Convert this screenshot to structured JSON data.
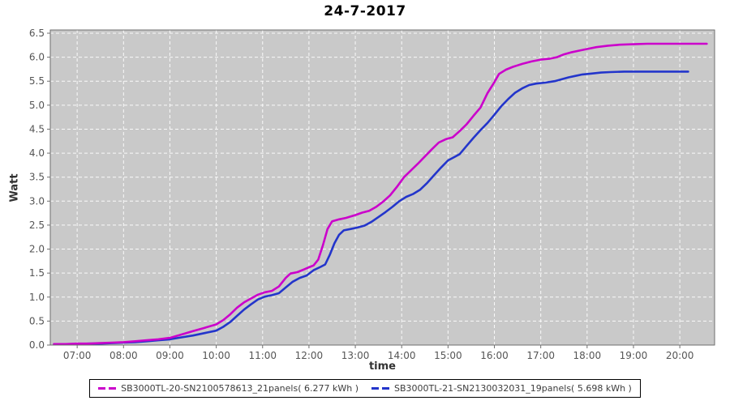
{
  "chart_data": {
    "type": "line",
    "title": "24-7-2017",
    "xlabel": "time",
    "ylabel": "Watt",
    "x_unit": "hour_of_day",
    "xlim": [
      6.42,
      20.75
    ],
    "ylim": [
      0,
      6.5
    ],
    "grid": true,
    "legend_position": "bottom-center",
    "plot_background": "#c9c9c9",
    "grid_color": "#ffffff",
    "axis_color": "#6e6e6e",
    "tick_label_color": "#555555",
    "x_tick_values": [
      7,
      8,
      9,
      10,
      11,
      12,
      13,
      14,
      15,
      16,
      17,
      18,
      19,
      20
    ],
    "x_tick_labels": [
      "07:00",
      "08:00",
      "09:00",
      "10:00",
      "11:00",
      "12:00",
      "13:00",
      "14:00",
      "15:00",
      "16:00",
      "17:00",
      "18:00",
      "19:00",
      "20:00"
    ],
    "y_tick_values": [
      0.0,
      0.5,
      1.0,
      1.5,
      2.0,
      2.5,
      3.0,
      3.5,
      4.0,
      4.5,
      5.0,
      5.5,
      6.0,
      6.5
    ],
    "y_tick_labels": [
      "0.0",
      "0.5",
      "1.0",
      "1.5",
      "2.0",
      "2.5",
      "3.0",
      "3.5",
      "4.0",
      "4.5",
      "5.0",
      "5.5",
      "6.0",
      "6.5"
    ],
    "series": [
      {
        "name": "SB3000TL-20-SN2100578613_21panels( 6.277 kWh )",
        "color": "#cb00cb",
        "final_kwh": 6.277,
        "points": [
          [
            6.5,
            0.02
          ],
          [
            6.75,
            0.02
          ],
          [
            7.0,
            0.03
          ],
          [
            7.25,
            0.03
          ],
          [
            7.5,
            0.04
          ],
          [
            7.75,
            0.05
          ],
          [
            8.0,
            0.06
          ],
          [
            8.25,
            0.08
          ],
          [
            8.5,
            0.1
          ],
          [
            8.75,
            0.12
          ],
          [
            9.0,
            0.15
          ],
          [
            9.25,
            0.22
          ],
          [
            9.5,
            0.29
          ],
          [
            9.75,
            0.36
          ],
          [
            10.0,
            0.43
          ],
          [
            10.15,
            0.52
          ],
          [
            10.3,
            0.64
          ],
          [
            10.45,
            0.78
          ],
          [
            10.6,
            0.89
          ],
          [
            10.75,
            0.97
          ],
          [
            10.9,
            1.05
          ],
          [
            11.05,
            1.1
          ],
          [
            11.2,
            1.13
          ],
          [
            11.35,
            1.22
          ],
          [
            11.5,
            1.4
          ],
          [
            11.6,
            1.49
          ],
          [
            11.75,
            1.52
          ],
          [
            11.9,
            1.58
          ],
          [
            12.0,
            1.62
          ],
          [
            12.1,
            1.66
          ],
          [
            12.2,
            1.78
          ],
          [
            12.3,
            2.08
          ],
          [
            12.4,
            2.42
          ],
          [
            12.5,
            2.58
          ],
          [
            12.65,
            2.62
          ],
          [
            12.8,
            2.65
          ],
          [
            13.0,
            2.71
          ],
          [
            13.15,
            2.76
          ],
          [
            13.3,
            2.8
          ],
          [
            13.45,
            2.88
          ],
          [
            13.6,
            2.99
          ],
          [
            13.75,
            3.12
          ],
          [
            13.9,
            3.3
          ],
          [
            14.05,
            3.5
          ],
          [
            14.2,
            3.64
          ],
          [
            14.35,
            3.78
          ],
          [
            14.5,
            3.93
          ],
          [
            14.65,
            4.08
          ],
          [
            14.8,
            4.22
          ],
          [
            14.95,
            4.29
          ],
          [
            15.1,
            4.33
          ],
          [
            15.25,
            4.46
          ],
          [
            15.4,
            4.6
          ],
          [
            15.55,
            4.78
          ],
          [
            15.7,
            4.95
          ],
          [
            15.85,
            5.25
          ],
          [
            16.0,
            5.48
          ],
          [
            16.1,
            5.65
          ],
          [
            16.25,
            5.74
          ],
          [
            16.4,
            5.8
          ],
          [
            16.6,
            5.86
          ],
          [
            16.8,
            5.91
          ],
          [
            17.0,
            5.95
          ],
          [
            17.2,
            5.97
          ],
          [
            17.35,
            6.0
          ],
          [
            17.5,
            6.06
          ],
          [
            17.65,
            6.1
          ],
          [
            17.8,
            6.13
          ],
          [
            18.0,
            6.17
          ],
          [
            18.2,
            6.21
          ],
          [
            18.45,
            6.24
          ],
          [
            18.7,
            6.26
          ],
          [
            19.0,
            6.27
          ],
          [
            19.3,
            6.28
          ],
          [
            19.7,
            6.28
          ],
          [
            20.1,
            6.28
          ],
          [
            20.58,
            6.28
          ]
        ]
      },
      {
        "name": "SB3000TL-21-SN2130032031_19panels( 5.698 kWh )",
        "color": "#2335cb",
        "final_kwh": 5.698,
        "points": [
          [
            6.5,
            0.02
          ],
          [
            6.75,
            0.02
          ],
          [
            7.0,
            0.02
          ],
          [
            7.25,
            0.03
          ],
          [
            7.5,
            0.03
          ],
          [
            7.75,
            0.04
          ],
          [
            8.0,
            0.05
          ],
          [
            8.25,
            0.06
          ],
          [
            8.5,
            0.08
          ],
          [
            8.75,
            0.1
          ],
          [
            9.0,
            0.12
          ],
          [
            9.25,
            0.16
          ],
          [
            9.5,
            0.2
          ],
          [
            9.75,
            0.25
          ],
          [
            10.0,
            0.3
          ],
          [
            10.15,
            0.38
          ],
          [
            10.3,
            0.48
          ],
          [
            10.45,
            0.61
          ],
          [
            10.6,
            0.74
          ],
          [
            10.75,
            0.85
          ],
          [
            10.9,
            0.95
          ],
          [
            11.05,
            1.01
          ],
          [
            11.2,
            1.04
          ],
          [
            11.35,
            1.08
          ],
          [
            11.5,
            1.2
          ],
          [
            11.65,
            1.32
          ],
          [
            11.8,
            1.4
          ],
          [
            11.95,
            1.45
          ],
          [
            12.1,
            1.56
          ],
          [
            12.25,
            1.63
          ],
          [
            12.35,
            1.68
          ],
          [
            12.45,
            1.88
          ],
          [
            12.55,
            2.12
          ],
          [
            12.65,
            2.3
          ],
          [
            12.75,
            2.39
          ],
          [
            12.9,
            2.42
          ],
          [
            13.05,
            2.45
          ],
          [
            13.2,
            2.49
          ],
          [
            13.35,
            2.57
          ],
          [
            13.5,
            2.67
          ],
          [
            13.65,
            2.77
          ],
          [
            13.8,
            2.88
          ],
          [
            13.95,
            3.0
          ],
          [
            14.1,
            3.09
          ],
          [
            14.25,
            3.15
          ],
          [
            14.4,
            3.24
          ],
          [
            14.55,
            3.38
          ],
          [
            14.7,
            3.54
          ],
          [
            14.85,
            3.7
          ],
          [
            15.0,
            3.85
          ],
          [
            15.1,
            3.9
          ],
          [
            15.25,
            3.98
          ],
          [
            15.4,
            4.15
          ],
          [
            15.55,
            4.32
          ],
          [
            15.7,
            4.48
          ],
          [
            15.85,
            4.63
          ],
          [
            16.0,
            4.8
          ],
          [
            16.15,
            4.98
          ],
          [
            16.3,
            5.13
          ],
          [
            16.45,
            5.26
          ],
          [
            16.6,
            5.35
          ],
          [
            16.75,
            5.42
          ],
          [
            16.9,
            5.45
          ],
          [
            17.1,
            5.47
          ],
          [
            17.3,
            5.5
          ],
          [
            17.45,
            5.54
          ],
          [
            17.6,
            5.58
          ],
          [
            17.75,
            5.61
          ],
          [
            17.9,
            5.64
          ],
          [
            18.1,
            5.66
          ],
          [
            18.3,
            5.68
          ],
          [
            18.5,
            5.69
          ],
          [
            18.8,
            5.7
          ],
          [
            19.2,
            5.7
          ],
          [
            19.6,
            5.7
          ],
          [
            20.0,
            5.7
          ],
          [
            20.18,
            5.7
          ]
        ]
      }
    ]
  }
}
